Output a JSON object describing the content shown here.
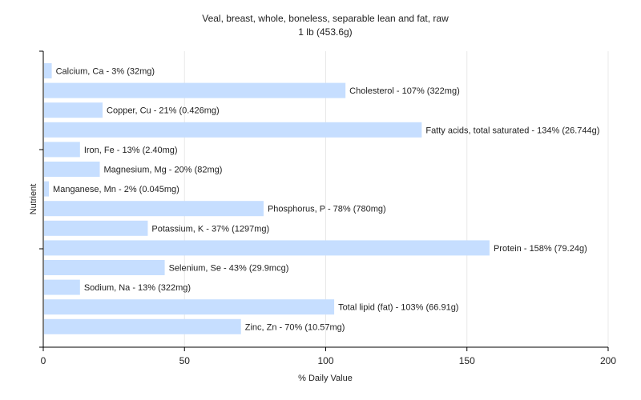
{
  "chart_data": {
    "type": "bar",
    "orientation": "horizontal",
    "title": "Veal, breast, whole, boneless, separable lean and fat, raw",
    "subtitle": "1 lb (453.6g)",
    "xlabel": "% Daily Value",
    "ylabel": "Nutrient",
    "xlim": [
      0,
      200
    ],
    "x_ticks": [
      "0",
      "50",
      "100",
      "150",
      "200"
    ],
    "grid": "vertical",
    "bar_color": "#c6deff",
    "categories": [
      "Calcium, Ca",
      "Cholesterol",
      "Copper, Cu",
      "Fatty acids, total saturated",
      "Iron, Fe",
      "Magnesium, Mg",
      "Manganese, Mn",
      "Phosphorus, P",
      "Potassium, K",
      "Protein",
      "Selenium, Se",
      "Sodium, Na",
      "Total lipid (fat)",
      "Zinc, Zn"
    ],
    "values": [
      3,
      107,
      21,
      134,
      13,
      20,
      2,
      78,
      37,
      158,
      43,
      13,
      103,
      70
    ],
    "labels": [
      "Calcium, Ca - 3% (32mg)",
      "Cholesterol - 107% (322mg)",
      "Copper, Cu - 21% (0.426mg)",
      "Fatty acids, total saturated - 134% (26.744g)",
      "Iron, Fe - 13% (2.40mg)",
      "Magnesium, Mg - 20% (82mg)",
      "Manganese, Mn - 2% (0.045mg)",
      "Phosphorus, P - 78% (780mg)",
      "Potassium, K - 37% (1297mg)",
      "Protein - 158% (79.24g)",
      "Selenium, Se - 43% (29.9mcg)",
      "Sodium, Na - 13% (322mg)",
      "Total lipid (fat) - 103% (66.91g)",
      "Zinc, Zn - 70% (10.57mg)"
    ]
  }
}
